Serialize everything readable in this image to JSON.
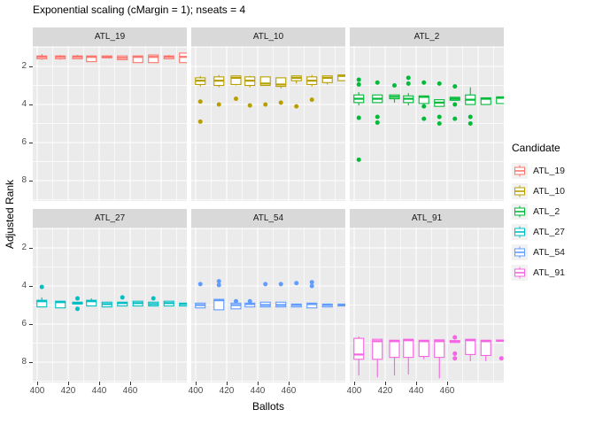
{
  "chart_data": {
    "type": "boxplot",
    "title": "Exponential scaling (cMargin = 1); nseats = 4",
    "xlabel": "Ballots",
    "ylabel": "Adjusted Rank",
    "legend_title": "Candidate",
    "x_ticks": [
      "400",
      "420",
      "440",
      "460"
    ],
    "y_ticks": [
      "2",
      "4",
      "6",
      "8"
    ],
    "x_domain": [
      397.1,
      496.5
    ],
    "y_domain_reversed_top_to_bottom": [
      0.93,
      9.07
    ],
    "grid": {
      "x_major": [
        400,
        420,
        440,
        460,
        480
      ],
      "x_minor": [
        410,
        430,
        450,
        470,
        490
      ],
      "y_major": [
        2,
        4,
        6,
        8
      ],
      "y_minor": [
        1,
        3,
        5,
        7,
        9
      ]
    },
    "theme": {
      "panel_bg": "#EBEBEB",
      "strip_bg": "#D9D9D9",
      "grid_color": "#FFFFFF",
      "axis_text_color": "#4D4D4D",
      "legend_key_bg": "#F2F2F2"
    },
    "x_values": [
      403,
      415,
      426,
      435,
      445,
      455,
      465,
      475,
      485,
      495
    ],
    "facets": [
      {
        "label": "ATL_19",
        "color": "#F8766D",
        "boxes": [
          {
            "x": 403,
            "med": 1.5,
            "qt": 1.45,
            "qb": 1.6,
            "wt": 1.35,
            "wb": 1.65
          },
          {
            "x": 415,
            "med": 1.5,
            "qt": 1.45,
            "qb": 1.6,
            "wt": 1.4,
            "wb": 1.65
          },
          {
            "x": 426,
            "med": 1.5,
            "qt": 1.45,
            "qb": 1.6,
            "wt": 1.4,
            "wb": 1.6
          },
          {
            "x": 435,
            "med": 1.5,
            "qt": 1.45,
            "qb": 1.75
          },
          {
            "x": 445,
            "med": 1.5,
            "qt": 1.45,
            "qb": 1.55
          },
          {
            "x": 455,
            "med": 1.55,
            "qt": 1.45,
            "qb": 1.65
          },
          {
            "x": 465,
            "med": 1.5,
            "qt": 1.45,
            "qb": 1.8
          },
          {
            "x": 475,
            "med": 1.5,
            "qt": 1.4,
            "qb": 1.8
          },
          {
            "x": 485,
            "med": 1.5,
            "qt": 1.45,
            "qb": 1.6,
            "wt": 1.4,
            "wb": 1.6
          },
          {
            "x": 495,
            "med": 1.5,
            "qt": 1.3,
            "qb": 1.8
          }
        ]
      },
      {
        "label": "ATL_10",
        "color": "#B79F00",
        "boxes": [
          {
            "x": 403,
            "med": 2.75,
            "qt": 2.6,
            "qb": 2.95,
            "wt": 2.5,
            "wb": 3.05,
            "out": [
              3.85,
              4.9
            ]
          },
          {
            "x": 415,
            "med": 2.75,
            "qt": 2.55,
            "qb": 3.0,
            "wt": 2.45,
            "wb": 3.1,
            "out": [
              4.0
            ]
          },
          {
            "x": 426,
            "med": 2.6,
            "qt": 2.5,
            "qb": 2.95,
            "wb": 3.0,
            "out": [
              3.7
            ]
          },
          {
            "x": 435,
            "med": 2.75,
            "qt": 2.55,
            "qb": 3.0,
            "wt": 2.5,
            "wb": 3.1,
            "out": [
              4.05
            ]
          },
          {
            "x": 445,
            "med": 2.9,
            "qt": 2.55,
            "qb": 3.0,
            "out": [
              4.0
            ]
          },
          {
            "x": 455,
            "med": 2.95,
            "qt": 2.6,
            "qb": 3.05,
            "wb": 3.15,
            "out": [
              3.9
            ]
          },
          {
            "x": 465,
            "med": 2.6,
            "qt": 2.5,
            "qb": 2.75,
            "wb": 2.9,
            "out": [
              4.1
            ]
          },
          {
            "x": 475,
            "med": 2.75,
            "qt": 2.55,
            "qb": 2.95,
            "wt": 2.45,
            "wb": 3.05,
            "out": [
              3.75
            ]
          },
          {
            "x": 485,
            "med": 2.6,
            "qt": 2.5,
            "qb": 2.85,
            "wb": 2.95
          },
          {
            "x": 495,
            "med": 2.5,
            "qt": 2.45,
            "qb": 2.75
          }
        ]
      },
      {
        "label": "ATL_2",
        "color": "#00BA38",
        "boxes": [
          {
            "x": 403,
            "med": 3.7,
            "qt": 3.5,
            "qb": 3.9,
            "wt": 3.35,
            "wb": 4.05,
            "out": [
              2.7,
              2.95,
              4.7,
              6.9
            ]
          },
          {
            "x": 415,
            "med": 3.7,
            "qt": 3.5,
            "qb": 3.9,
            "out": [
              2.85,
              4.65,
              4.95
            ]
          },
          {
            "x": 426,
            "med": 3.6,
            "qt": 3.5,
            "qb": 3.7,
            "wb": 3.9,
            "out": [
              3.0
            ]
          },
          {
            "x": 435,
            "med": 3.7,
            "qt": 3.55,
            "qb": 3.9,
            "wt": 3.4,
            "wb": 4.05,
            "out": [
              2.6,
              2.9
            ]
          },
          {
            "x": 445,
            "med": 3.6,
            "qt": 3.55,
            "qb": 3.95,
            "out": [
              2.85,
              4.1,
              4.75
            ]
          },
          {
            "x": 455,
            "med": 3.9,
            "qt": 3.75,
            "qb": 4.1,
            "out": [
              2.9,
              4.65,
              5.0
            ]
          },
          {
            "x": 465,
            "med": 3.7,
            "qt": 3.62,
            "qb": 3.78,
            "out": [
              3.05,
              4.0,
              4.75
            ]
          },
          {
            "x": 475,
            "med": 3.75,
            "qt": 3.5,
            "qb": 4.0,
            "wt": 3.1,
            "out": [
              4.65,
              5.0
            ]
          },
          {
            "x": 485,
            "med": 3.7,
            "qt": 3.65,
            "qb": 4.0
          },
          {
            "x": 495,
            "med": 3.65,
            "qt": 3.6,
            "qb": 3.95
          }
        ]
      },
      {
        "label": "ATL_27",
        "color": "#00BFC4",
        "boxes": [
          {
            "x": 403,
            "med": 4.8,
            "qt": 4.75,
            "qb": 5.1,
            "wt": 4.6,
            "out": [
              4.05
            ]
          },
          {
            "x": 415,
            "med": 4.85,
            "qt": 4.8,
            "qb": 5.15
          },
          {
            "x": 426,
            "med": 4.9,
            "qt": 4.85,
            "qb": 4.95,
            "out": [
              4.65,
              5.2
            ]
          },
          {
            "x": 435,
            "med": 4.8,
            "qt": 4.75,
            "qb": 5.05,
            "wt": 4.65
          },
          {
            "x": 445,
            "med": 4.95,
            "qt": 4.85,
            "qb": 5.1
          },
          {
            "x": 455,
            "med": 4.9,
            "qt": 4.85,
            "qb": 5.05,
            "out": [
              4.6
            ]
          },
          {
            "x": 465,
            "med": 4.9,
            "qt": 4.8,
            "qb": 5.05
          },
          {
            "x": 475,
            "med": 4.95,
            "qt": 4.85,
            "qb": 5.05,
            "out": [
              4.65
            ]
          },
          {
            "x": 485,
            "med": 4.9,
            "qt": 4.8,
            "qb": 5.05
          },
          {
            "x": 495,
            "med": 4.95,
            "qt": 4.9,
            "qb": 5.05
          }
        ]
      },
      {
        "label": "ATL_54",
        "color": "#619CFF",
        "boxes": [
          {
            "x": 403,
            "med": 5.0,
            "qt": 4.9,
            "qb": 5.15,
            "out": [
              3.9
            ]
          },
          {
            "x": 415,
            "med": 4.75,
            "qt": 4.7,
            "qb": 5.25,
            "out": [
              3.75,
              3.95
            ]
          },
          {
            "x": 426,
            "med": 5.0,
            "qt": 4.9,
            "qb": 5.2,
            "out": [
              4.8
            ]
          },
          {
            "x": 435,
            "med": 4.95,
            "qt": 4.9,
            "qb": 5.1,
            "out": [
              4.8
            ]
          },
          {
            "x": 445,
            "med": 5.0,
            "qt": 4.85,
            "qb": 5.1,
            "out": [
              3.9
            ]
          },
          {
            "x": 455,
            "med": 5.0,
            "qt": 4.85,
            "qb": 5.1,
            "out": [
              3.9
            ]
          },
          {
            "x": 465,
            "med": 5.0,
            "qt": 4.95,
            "qb": 5.1,
            "out": [
              3.85
            ]
          },
          {
            "x": 475,
            "med": 4.95,
            "qt": 4.9,
            "qb": 5.15,
            "out": [
              3.8,
              4.0
            ]
          },
          {
            "x": 485,
            "med": 5.0,
            "qt": 4.95,
            "qb": 5.1
          },
          {
            "x": 495,
            "med": 5.0,
            "qt": 4.95,
            "qb": 5.05
          }
        ]
      },
      {
        "label": "ATL_91",
        "color": "#F564E3",
        "boxes": [
          {
            "x": 403,
            "med": 7.6,
            "qt": 6.75,
            "qb": 7.85,
            "wt": 6.65,
            "wb": 8.7
          },
          {
            "x": 415,
            "med": 6.9,
            "qt": 6.8,
            "qb": 7.85,
            "wb": 8.8
          },
          {
            "x": 426,
            "med": 6.9,
            "qt": 6.85,
            "qb": 7.75,
            "wb": 8.7
          },
          {
            "x": 435,
            "med": 6.85,
            "qt": 6.8,
            "qb": 7.75,
            "wb": 8.65
          },
          {
            "x": 445,
            "med": 6.9,
            "qt": 6.85,
            "qb": 7.7,
            "wb": 7.85
          },
          {
            "x": 455,
            "med": 6.9,
            "qt": 6.83,
            "qb": 7.75,
            "wb": 8.85
          },
          {
            "x": 465,
            "med": 6.9,
            "qt": 6.87,
            "qb": 6.97,
            "out": [
              6.7,
              7.55,
              7.8
            ]
          },
          {
            "x": 475,
            "med": 6.85,
            "qt": 6.8,
            "qb": 7.6,
            "wb": 7.95
          },
          {
            "x": 485,
            "med": 6.9,
            "qt": 6.85,
            "qb": 7.65,
            "wb": 7.95
          },
          {
            "x": 495,
            "med": 6.87,
            "qt": 6.84,
            "qb": 6.9,
            "out": [
              7.8
            ]
          }
        ]
      }
    ]
  }
}
